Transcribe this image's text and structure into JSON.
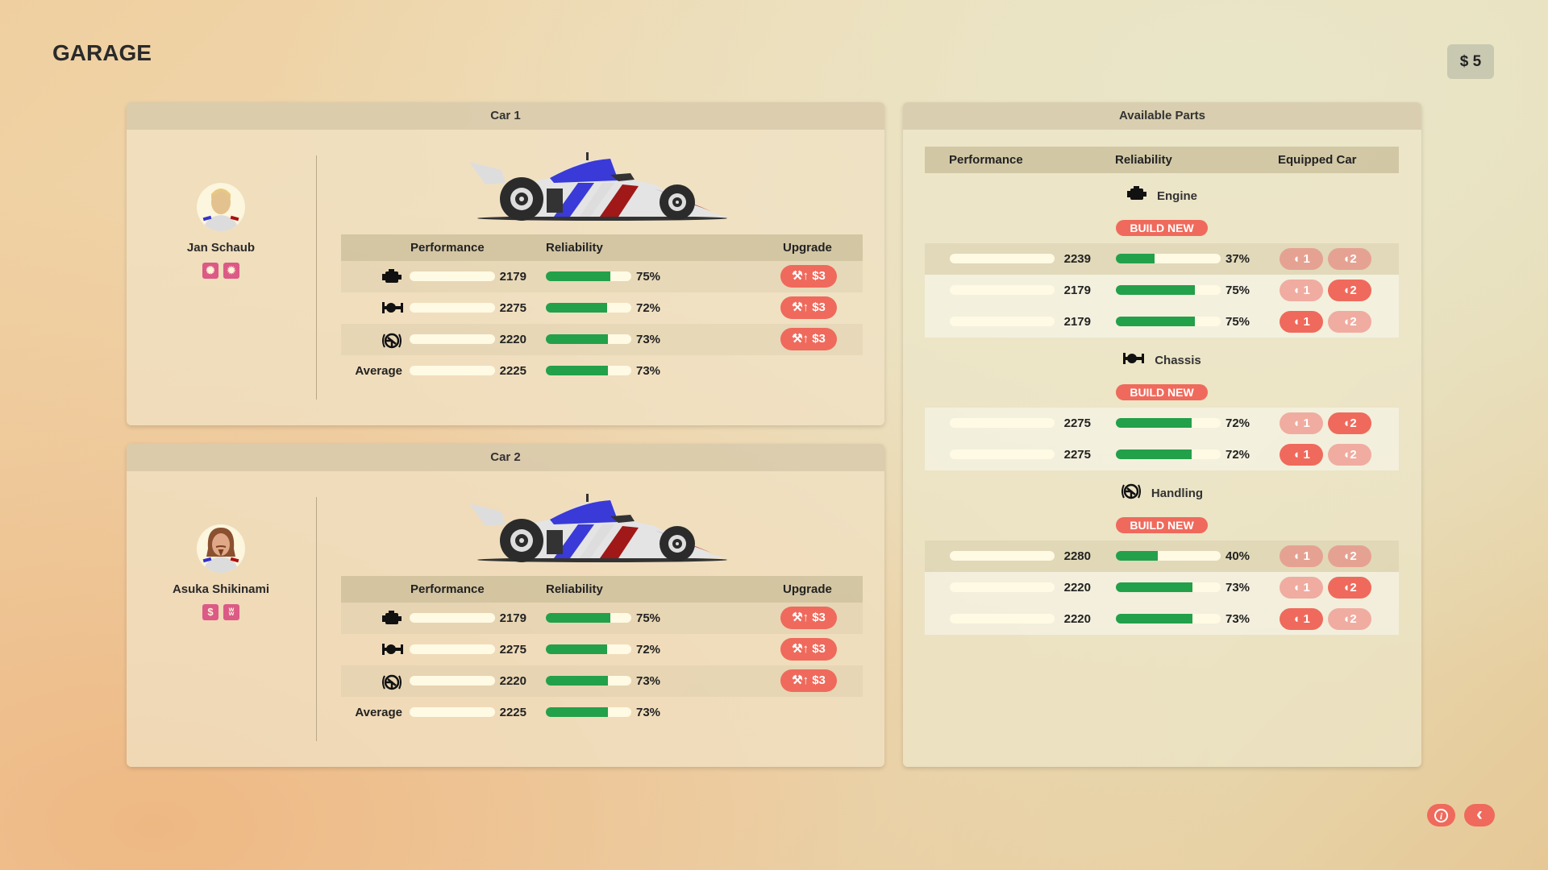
{
  "title": "GARAGE",
  "money": "$ 5",
  "colors": {
    "accent": "#ef6a5c",
    "reliability": "#23a04a",
    "trait": "#db5a86"
  },
  "cars": [
    {
      "header": "Car 1",
      "driver": {
        "name": "Jan Schaub",
        "traits": [
          "burst-icon",
          "star-burst-icon"
        ]
      },
      "columns": {
        "performance": "Performance",
        "reliability": "Reliability",
        "upgrade": "Upgrade"
      },
      "rows": [
        {
          "icon": "engine-icon",
          "performance": "2179",
          "reliability": "75%",
          "rel_value": 75,
          "upgrade": "$3"
        },
        {
          "icon": "chassis-icon",
          "performance": "2275",
          "reliability": "72%",
          "rel_value": 72,
          "upgrade": "$3"
        },
        {
          "icon": "steering-icon",
          "performance": "2220",
          "reliability": "73%",
          "rel_value": 73,
          "upgrade": "$3"
        }
      ],
      "average": {
        "label": "Average",
        "performance": "2225",
        "reliability": "73%",
        "rel_value": 73
      }
    },
    {
      "header": "Car 2",
      "driver": {
        "name": "Asuka Shikinami",
        "traits": [
          "dollar-icon",
          "cow-icon"
        ]
      },
      "columns": {
        "performance": "Performance",
        "reliability": "Reliability",
        "upgrade": "Upgrade"
      },
      "rows": [
        {
          "icon": "engine-icon",
          "performance": "2179",
          "reliability": "75%",
          "rel_value": 75,
          "upgrade": "$3"
        },
        {
          "icon": "chassis-icon",
          "performance": "2275",
          "reliability": "72%",
          "rel_value": 72,
          "upgrade": "$3"
        },
        {
          "icon": "steering-icon",
          "performance": "2220",
          "reliability": "73%",
          "rel_value": 73,
          "upgrade": "$3"
        }
      ],
      "average": {
        "label": "Average",
        "performance": "2225",
        "reliability": "73%",
        "rel_value": 73
      }
    }
  ],
  "parts": {
    "header": "Available Parts",
    "columns": {
      "performance": "Performance",
      "reliability": "Reliability",
      "equipped": "Equipped Car"
    },
    "build_new": "BUILD NEW",
    "car_labels": [
      "1",
      "2"
    ],
    "sections": [
      {
        "name": "Engine",
        "icon": "engine-icon",
        "items": [
          {
            "performance": "2239",
            "reliability": "37%",
            "rel_value": 37,
            "equipped": 0
          },
          {
            "performance": "2179",
            "reliability": "75%",
            "rel_value": 75,
            "equipped": 2
          },
          {
            "performance": "2179",
            "reliability": "75%",
            "rel_value": 75,
            "equipped": 1
          }
        ]
      },
      {
        "name": "Chassis",
        "icon": "chassis-icon",
        "items": [
          {
            "performance": "2275",
            "reliability": "72%",
            "rel_value": 72,
            "equipped": 2
          },
          {
            "performance": "2275",
            "reliability": "72%",
            "rel_value": 72,
            "equipped": 1
          }
        ]
      },
      {
        "name": "Handling",
        "icon": "steering-icon",
        "items": [
          {
            "performance": "2280",
            "reliability": "40%",
            "rel_value": 40,
            "equipped": 0
          },
          {
            "performance": "2220",
            "reliability": "73%",
            "rel_value": 73,
            "equipped": 2
          },
          {
            "performance": "2220",
            "reliability": "73%",
            "rel_value": 73,
            "equipped": 1
          }
        ]
      }
    ]
  },
  "footer": {
    "info": "i",
    "back": "‹"
  }
}
